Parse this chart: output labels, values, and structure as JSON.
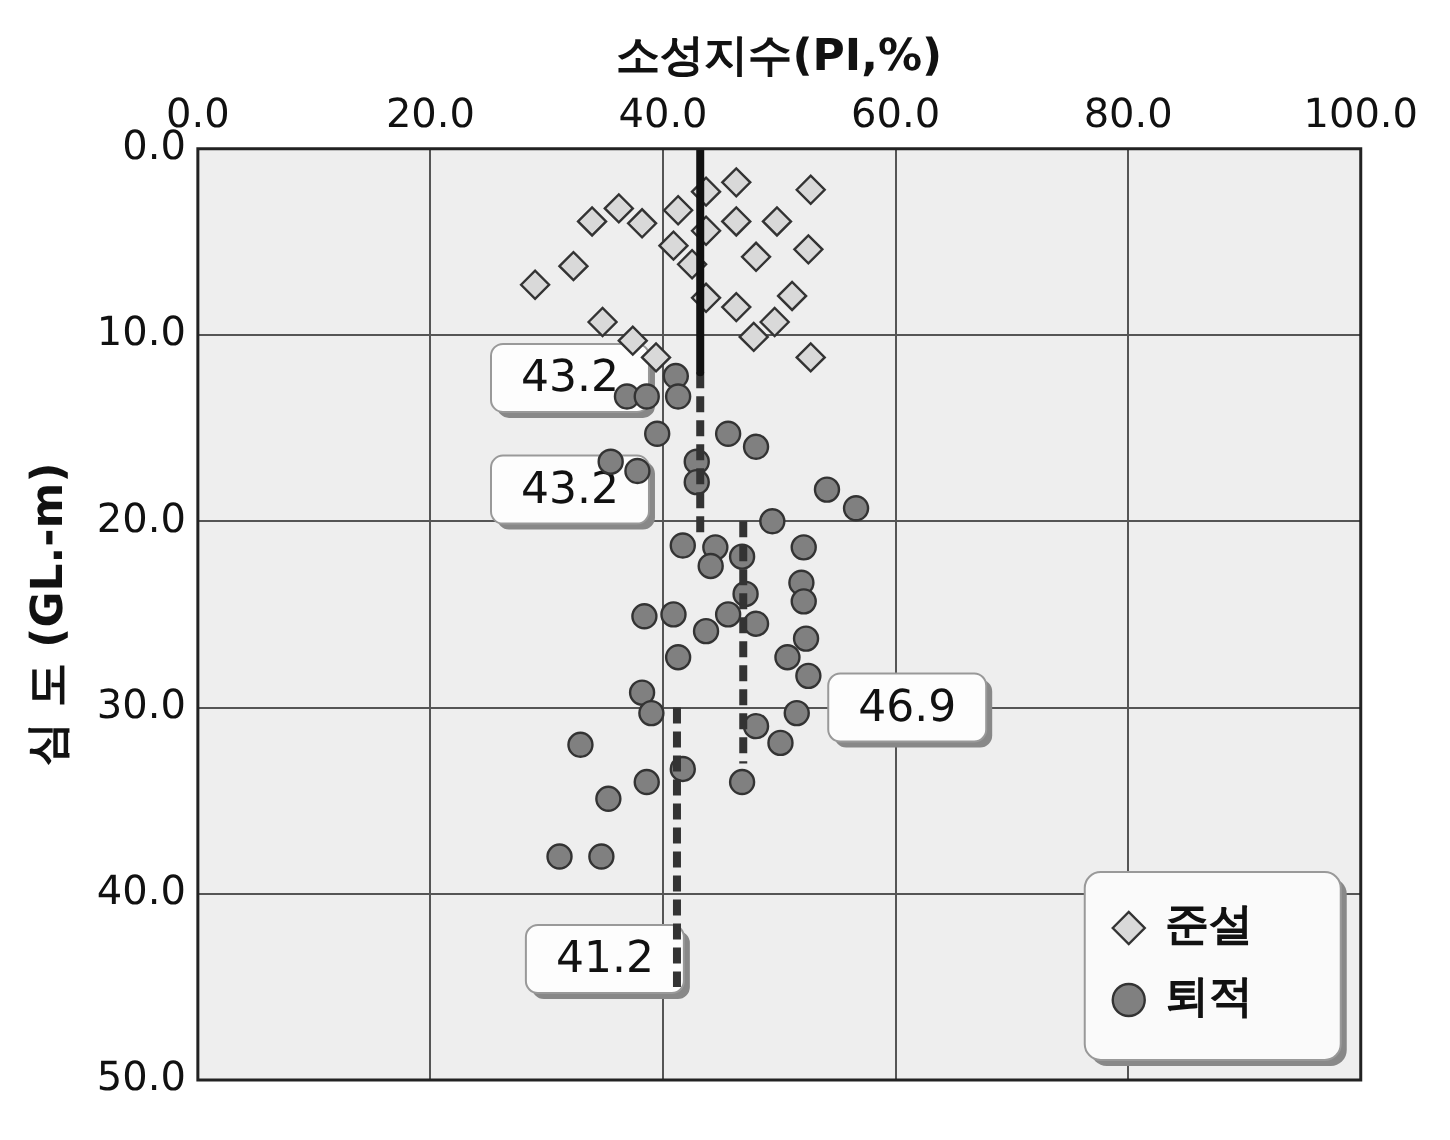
{
  "chart_data": {
    "type": "scatter",
    "xlabel": "소성지수(PI,%)",
    "ylabel": "심 도 (GL.-m)",
    "xlim": [
      0,
      100
    ],
    "xticks": [
      {
        "value": 0,
        "label": "0.0"
      },
      {
        "value": 20,
        "label": "20.0"
      },
      {
        "value": 40,
        "label": "40.0"
      },
      {
        "value": 60,
        "label": "60.0"
      },
      {
        "value": 80,
        "label": "80.0"
      },
      {
        "value": 100,
        "label": "100.0"
      }
    ],
    "ylim": [
      50,
      0
    ],
    "yticks": [
      {
        "value": 0,
        "label": "0.0"
      },
      {
        "value": 10,
        "label": "10.0"
      },
      {
        "value": 20,
        "label": "20.0"
      },
      {
        "value": 30,
        "label": "30.0"
      },
      {
        "value": 40,
        "label": "40.0"
      },
      {
        "value": 50,
        "label": "50.0"
      }
    ],
    "grid": true,
    "legend": "bottom right",
    "series": [
      {
        "name": "준설",
        "marker": "diamond",
        "color": "#d9d9d9",
        "x": [
          52.7,
          46.3,
          43.7,
          36.2,
          33.9,
          38.2,
          41.3,
          46.3,
          49.8,
          43.7,
          40.9,
          52.5,
          48.0,
          42.5,
          32.3,
          29.0,
          43.7,
          46.3,
          51.1,
          49.6,
          47.8,
          34.8,
          37.4,
          39.4,
          52.7
        ],
        "values": [
          2.2,
          1.8,
          2.3,
          3.2,
          3.9,
          4.0,
          3.3,
          3.9,
          3.9,
          4.4,
          5.2,
          5.4,
          5.8,
          6.2,
          6.3,
          7.3,
          8.0,
          8.5,
          7.9,
          9.3,
          10.1,
          9.3,
          10.3,
          11.2,
          11.2
        ]
      },
      {
        "name": "퇴적",
        "marker": "circle",
        "color": "#808080",
        "x": [
          41.1,
          36.9,
          38.6,
          41.3,
          39.5,
          45.6,
          48.0,
          35.5,
          37.8,
          42.9,
          42.9,
          54.1,
          56.6,
          49.4,
          41.7,
          44.5,
          52.1,
          44.1,
          46.8,
          47.1,
          51.9,
          52.1,
          38.4,
          40.9,
          45.6,
          48.0,
          43.7,
          52.3,
          41.3,
          50.7,
          52.5,
          38.2,
          39.0,
          51.5,
          48.0,
          50.1,
          32.9,
          41.7,
          38.6,
          46.8,
          35.3,
          31.1,
          34.7
        ],
        "values": [
          12.2,
          13.3,
          13.3,
          13.3,
          15.3,
          15.3,
          16.0,
          16.8,
          17.3,
          16.8,
          17.9,
          18.3,
          19.3,
          20.0,
          21.3,
          21.4,
          21.4,
          22.4,
          21.9,
          23.9,
          23.3,
          24.3,
          25.1,
          25.0,
          25.0,
          25.5,
          25.9,
          26.3,
          27.3,
          27.3,
          28.3,
          29.2,
          30.3,
          30.3,
          31.0,
          31.9,
          32.0,
          33.3,
          34.0,
          34.0,
          34.9,
          38.0,
          38.0
        ]
      },
      {
        "type": "line",
        "line_style": "solid",
        "color": "#111111",
        "x": [
          43.2,
          43.2
        ],
        "values": [
          0,
          12
        ]
      },
      {
        "type": "line",
        "line_style": "dashed",
        "color": "#333333",
        "x": [
          43.2,
          43.2
        ],
        "values": [
          12,
          21
        ]
      },
      {
        "type": "line",
        "line_style": "dashed",
        "color": "#333333",
        "x": [
          46.9,
          46.9
        ],
        "values": [
          20,
          33
        ]
      },
      {
        "type": "line",
        "line_style": "dashed",
        "color": "#333333",
        "x": [
          41.2,
          41.2
        ],
        "values": [
          30,
          45
        ]
      }
    ],
    "annotations": [
      "43.2",
      "43.2",
      "46.9",
      "41.2"
    ]
  }
}
